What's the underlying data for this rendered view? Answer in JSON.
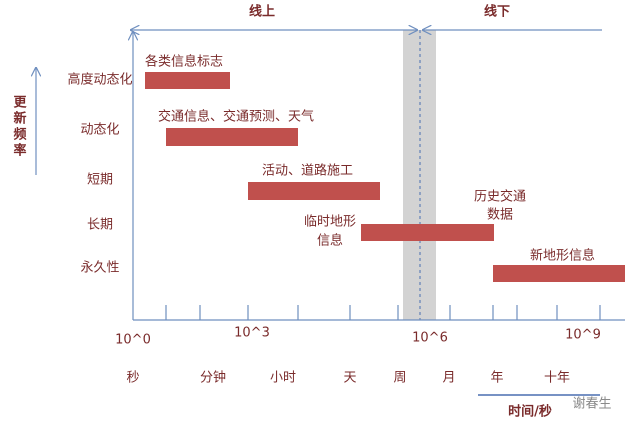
{
  "header": {
    "online": "线上",
    "offline": "线下"
  },
  "y_axis": {
    "title": "更新频率",
    "rows": [
      "高度动态化",
      "动态化",
      "短期",
      "长期",
      "永久性"
    ]
  },
  "bars": [
    {
      "label": "各类信息标志"
    },
    {
      "label": "交通信息、交通预测、天气"
    },
    {
      "label": "活动、道路施工"
    },
    {
      "label_lines": [
        "临时地形",
        "信息"
      ]
    },
    {
      "label_lines": [
        "历史交通",
        "数据"
      ]
    },
    {
      "label": "新地形信息"
    }
  ],
  "x_axis": {
    "exponents": [
      "10^0",
      "10^3",
      "10^6",
      "10^9"
    ],
    "units": [
      "秒",
      "分钟",
      "小时",
      "天",
      "周",
      "月",
      "年",
      "十年"
    ],
    "title": "时间/秒"
  },
  "watermark": "谢春生"
}
